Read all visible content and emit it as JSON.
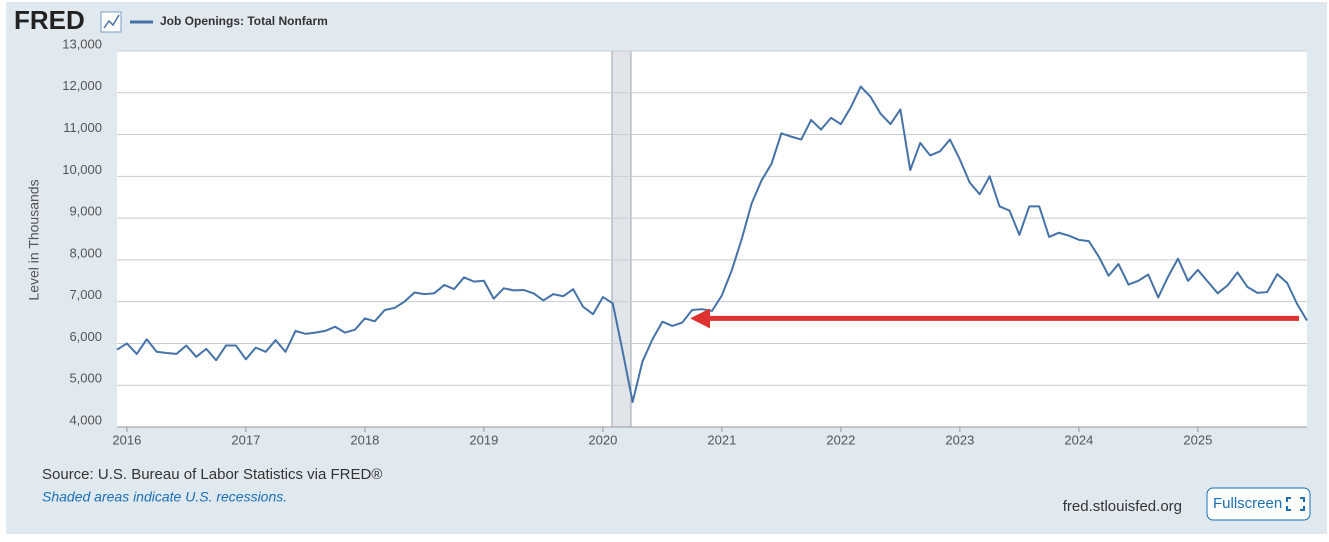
{
  "header": {
    "logo": "FRED"
  },
  "chart_data": {
    "type": "line",
    "y_label": "Level in Thousands",
    "x": [
      2015.917,
      2016.0,
      2016.083,
      2016.167,
      2016.25,
      2016.333,
      2016.417,
      2016.5,
      2016.583,
      2016.667,
      2016.75,
      2016.833,
      2016.917,
      2017.0,
      2017.083,
      2017.167,
      2017.25,
      2017.333,
      2017.417,
      2017.5,
      2017.583,
      2017.667,
      2017.75,
      2017.833,
      2017.917,
      2018.0,
      2018.083,
      2018.167,
      2018.25,
      2018.333,
      2018.417,
      2018.5,
      2018.583,
      2018.667,
      2018.75,
      2018.833,
      2018.917,
      2019.0,
      2019.083,
      2019.167,
      2019.25,
      2019.333,
      2019.417,
      2019.5,
      2019.583,
      2019.667,
      2019.75,
      2019.833,
      2019.917,
      2020.0,
      2020.083,
      2020.167,
      2020.25,
      2020.333,
      2020.417,
      2020.5,
      2020.583,
      2020.667,
      2020.75,
      2020.833,
      2020.917,
      2021.0,
      2021.083,
      2021.167,
      2021.25,
      2021.333,
      2021.417,
      2021.5,
      2021.583,
      2021.667,
      2021.75,
      2021.833,
      2021.917,
      2022.0,
      2022.083,
      2022.167,
      2022.25,
      2022.333,
      2022.417,
      2022.5,
      2022.583,
      2022.667,
      2022.75,
      2022.833,
      2022.917,
      2023.0,
      2023.083,
      2023.167,
      2023.25,
      2023.333,
      2023.417,
      2023.5,
      2023.583,
      2023.667,
      2023.75,
      2023.833,
      2023.917,
      2024.0,
      2024.083,
      2024.167,
      2024.25,
      2024.333,
      2024.417,
      2024.5,
      2024.583,
      2024.667,
      2024.75,
      2024.833,
      2024.917,
      2025.0,
      2025.083,
      2025.167,
      2025.25,
      2025.333,
      2025.417,
      2025.5,
      2025.583,
      2025.667,
      2025.75,
      2025.833,
      2025.917
    ],
    "series": [
      {
        "name": "Job Openings: Total Nonfarm",
        "color": "#4572a7",
        "values": [
          5850,
          6000,
          5750,
          6100,
          5800,
          5770,
          5750,
          5950,
          5680,
          5870,
          5600,
          5950,
          5950,
          5620,
          5900,
          5800,
          6080,
          5800,
          6300,
          6230,
          6260,
          6300,
          6400,
          6260,
          6330,
          6600,
          6530,
          6800,
          6850,
          7000,
          7220,
          7180,
          7200,
          7400,
          7300,
          7580,
          7480,
          7500,
          7070,
          7320,
          7270,
          7280,
          7200,
          7030,
          7180,
          7130,
          7300,
          6880,
          6700,
          7110,
          6960,
          5800,
          4600,
          5570,
          6100,
          6520,
          6420,
          6500,
          6800,
          6820,
          6780,
          7150,
          7750,
          8500,
          9350,
          9900,
          10300,
          11030,
          10950,
          10880,
          11350,
          11120,
          11400,
          11250,
          11650,
          12150,
          11900,
          11500,
          11250,
          11600,
          10150,
          10800,
          10500,
          10600,
          10880,
          10400,
          9850,
          9570,
          10000,
          9280,
          9180,
          8600,
          9280,
          9280,
          8550,
          8650,
          8580,
          8480,
          8450,
          8080,
          7620,
          7900,
          7410,
          7500,
          7650,
          7100,
          7600,
          8030,
          7500,
          7760,
          7480,
          7200,
          7390,
          7700,
          7350,
          7210,
          7230,
          7660,
          7450,
          6950,
          6550
        ]
      }
    ],
    "xlim": [
      2015.917,
      2025.917
    ],
    "xticks": [
      2016,
      2017,
      2018,
      2019,
      2020,
      2021,
      2022,
      2023,
      2024,
      2025
    ],
    "ylim": [
      4000,
      13000
    ],
    "yticks": [
      {
        "value": 4000,
        "label": "4,000"
      },
      {
        "value": 5000,
        "label": "5,000"
      },
      {
        "value": 6000,
        "label": "6,000"
      },
      {
        "value": 7000,
        "label": "7,000"
      },
      {
        "value": 8000,
        "label": "8,000"
      },
      {
        "value": 9000,
        "label": "9,000"
      },
      {
        "value": 10000,
        "label": "10,000"
      },
      {
        "value": 11000,
        "label": "11,000"
      },
      {
        "value": 12000,
        "label": "12,000"
      },
      {
        "value": 13000,
        "label": "13,000"
      }
    ],
    "grid": true,
    "recessions": [
      [
        2020.076,
        2020.236
      ]
    ],
    "arrow": {
      "x": [
        2025.85,
        2020.75
      ],
      "y": 6600,
      "color": "#e03131"
    }
  },
  "footer": {
    "source": "Source: U.S. Bureau of Labor Statistics via FRED®",
    "note": "Shaded areas indicate U.S. recessions.",
    "site": "fred.stlouisfed.org",
    "button": "Fullscreen"
  }
}
